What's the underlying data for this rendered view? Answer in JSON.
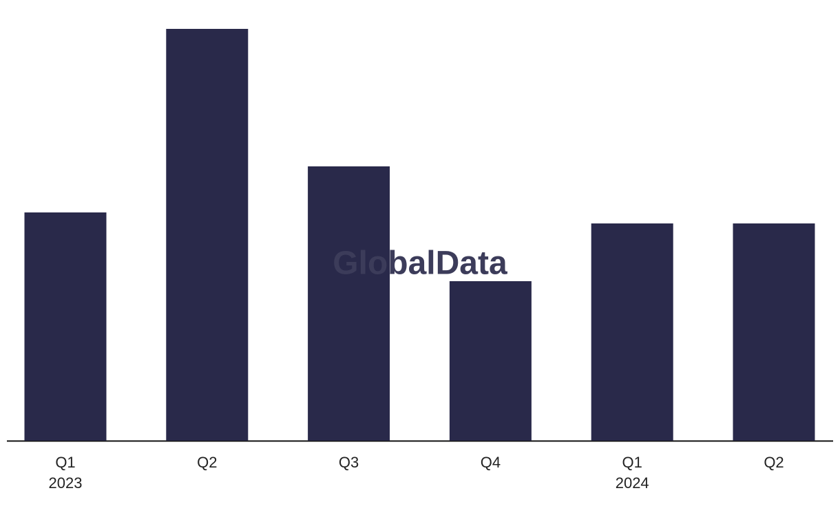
{
  "chart_data": {
    "type": "bar",
    "watermark": "GlobalData",
    "categories": [
      "Q1",
      "Q2",
      "Q3",
      "Q4",
      "Q1",
      "Q2"
    ],
    "category_years": [
      "2023",
      null,
      null,
      null,
      "2024",
      null
    ],
    "values": [
      332,
      599,
      399,
      232,
      316,
      316
    ],
    "color": "#29294a",
    "ylim": [
      0,
      599
    ]
  }
}
